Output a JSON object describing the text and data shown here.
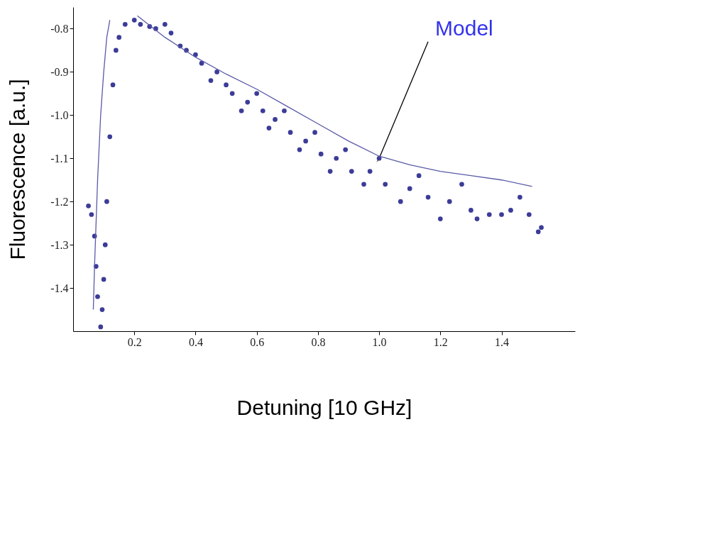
{
  "chart_data": {
    "type": "scatter",
    "xlabel": "Detuning [10 GHz]",
    "ylabel": "Fluorescence [a.u.]",
    "xlim": [
      0,
      1.64
    ],
    "ylim": [
      -1.5,
      -0.75
    ],
    "xticks": [
      0.2,
      0.4,
      0.6,
      0.8,
      {
        "value": 1,
        "label": "1.0"
      },
      1.2,
      1.4
    ],
    "yticks": [
      -1.4,
      -1.3,
      -1.2,
      -1.1,
      {
        "value": -1,
        "label": "-1.0"
      },
      -0.9,
      -0.8
    ],
    "grid": false,
    "series": [
      {
        "marker": "circle",
        "color": "#3c3c98",
        "x": [
          0.05,
          0.06,
          0.07,
          0.075,
          0.08,
          0.09,
          0.095,
          0.1,
          0.105,
          0.11,
          0.12,
          0.13,
          0.14,
          0.15,
          0.17,
          0.2,
          0.22,
          0.25,
          0.27,
          0.3,
          0.32,
          0.35,
          0.37,
          0.4,
          0.42,
          0.45,
          0.47,
          0.5,
          0.52,
          0.55,
          0.57,
          0.6,
          0.62,
          0.64,
          0.66,
          0.69,
          0.71,
          0.74,
          0.76,
          0.79,
          0.81,
          0.84,
          0.86,
          0.89,
          0.91,
          0.95,
          0.97,
          1.0,
          1.02,
          1.07,
          1.1,
          1.13,
          1.16,
          1.2,
          1.23,
          1.27,
          1.3,
          1.32,
          1.36,
          1.4,
          1.43,
          1.46,
          1.49,
          1.52,
          1.53
        ],
        "values": [
          -1.21,
          -1.23,
          -1.28,
          -1.35,
          -1.42,
          -1.49,
          -1.45,
          -1.38,
          -1.3,
          -1.2,
          -1.05,
          -0.93,
          -0.85,
          -0.82,
          -0.79,
          -0.78,
          -0.79,
          -0.795,
          -0.8,
          -0.79,
          -0.81,
          -0.84,
          -0.85,
          -0.86,
          -0.88,
          -0.92,
          -0.9,
          -0.93,
          -0.95,
          -0.99,
          -0.97,
          -0.95,
          -0.99,
          -1.03,
          -1.01,
          -0.99,
          -1.04,
          -1.08,
          -1.06,
          -1.04,
          -1.09,
          -1.13,
          -1.1,
          -1.08,
          -1.13,
          -1.16,
          -1.13,
          -1.1,
          -1.16,
          -1.2,
          -1.17,
          -1.14,
          -1.19,
          -1.24,
          -1.2,
          -1.16,
          -1.22,
          -1.24,
          -1.23,
          -1.23,
          -1.22,
          -1.19,
          -1.23,
          -1.27,
          -1.26
        ]
      },
      {
        "type": "line",
        "marker": "none",
        "line_style": "solid",
        "color": "#5a5aa8",
        "x": [
          0.066,
          0.07,
          0.08,
          0.09,
          0.1,
          0.11,
          0.12,
          0.16,
          0.21,
          0.3,
          0.4,
          0.5,
          0.6,
          0.7,
          0.8,
          0.9,
          1.0,
          1.1,
          1.2,
          1.3,
          1.4,
          1.5
        ],
        "values": [
          -1.45,
          -1.35,
          -1.15,
          -1.0,
          -0.9,
          -0.82,
          -0.78,
          null,
          -0.77,
          -0.82,
          -0.866,
          -0.905,
          -0.94,
          -0.98,
          -1.02,
          -1.06,
          -1.095,
          -1.115,
          -1.13,
          -1.14,
          -1.15,
          -1.165
        ]
      }
    ],
    "annotations": [
      {
        "text": "Model",
        "x": 1.0,
        "y": -1.1
      }
    ]
  }
}
